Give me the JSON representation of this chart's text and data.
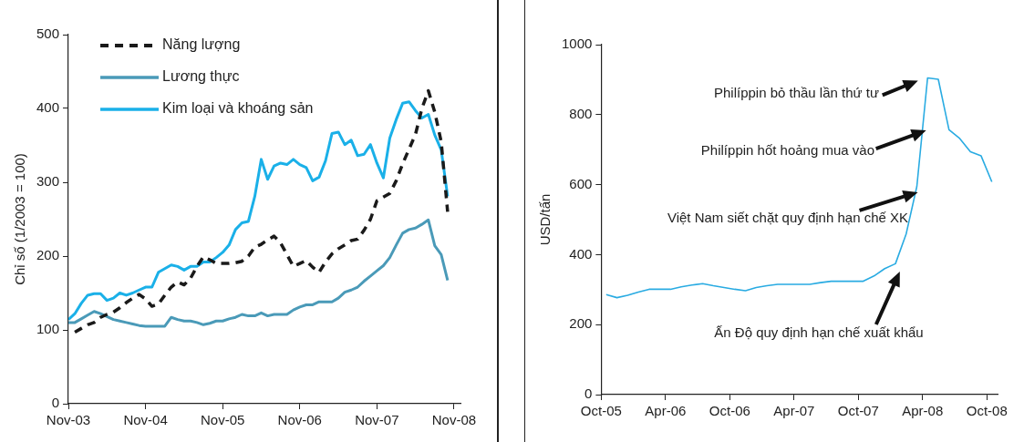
{
  "chart_data": [
    {
      "type": "line",
      "ylabel": "Chỉ số (1/2003 = 100)",
      "legend": "top left",
      "grid": false,
      "x": [
        "2003-11",
        "2003-12",
        "2004-01",
        "2004-02",
        "2004-03",
        "2004-04",
        "2004-05",
        "2004-06",
        "2004-07",
        "2004-08",
        "2004-09",
        "2004-10",
        "2004-11",
        "2004-12",
        "2005-01",
        "2005-02",
        "2005-03",
        "2005-04",
        "2005-05",
        "2005-06",
        "2005-07",
        "2005-08",
        "2005-09",
        "2005-10",
        "2005-11",
        "2005-12",
        "2006-01",
        "2006-02",
        "2006-03",
        "2006-04",
        "2006-05",
        "2006-06",
        "2006-07",
        "2006-08",
        "2006-09",
        "2006-10",
        "2006-11",
        "2006-12",
        "2007-01",
        "2007-02",
        "2007-03",
        "2007-04",
        "2007-05",
        "2007-06",
        "2007-07",
        "2007-08",
        "2007-09",
        "2007-10",
        "2007-11",
        "2007-12",
        "2008-01",
        "2008-02",
        "2008-03",
        "2008-04",
        "2008-05",
        "2008-06",
        "2008-07",
        "2008-08",
        "2008-09",
        "2008-10"
      ],
      "xlim": [
        "2003-11",
        "2008-12"
      ],
      "xticks": [
        {
          "value": "2003-11",
          "label": "Nov-03"
        },
        {
          "value": "2004-11",
          "label": "Nov-04"
        },
        {
          "value": "2005-11",
          "label": "Nov-05"
        },
        {
          "value": "2006-11",
          "label": "Nov-06"
        },
        {
          "value": "2007-11",
          "label": "Nov-07"
        },
        {
          "value": "2008-11",
          "label": "Nov-08"
        }
      ],
      "ylim": [
        0,
        500
      ],
      "yticks": [
        0,
        100,
        200,
        300,
        400,
        500
      ],
      "series": [
        {
          "name": "Năng lượng",
          "color": "#1a1a1a",
          "line_style": "dashed",
          "values": [
            null,
            97,
            102,
            107,
            110,
            117,
            121,
            124,
            130,
            137,
            143,
            148,
            142,
            132,
            135,
            147,
            158,
            165,
            161,
            170,
            186,
            199,
            195,
            190,
            190,
            190,
            191,
            193,
            200,
            212,
            216,
            222,
            227,
            218,
            202,
            186,
            190,
            194,
            185,
            178,
            192,
            203,
            210,
            215,
            221,
            223,
            235,
            250,
            275,
            280,
            285,
            302,
            325,
            345,
            365,
            400,
            424,
            395,
            355,
            260
          ]
        },
        {
          "name": "Lương thực",
          "color": "#4a9ab8",
          "values": [
            110,
            110,
            115,
            120,
            125,
            122,
            118,
            114,
            112,
            110,
            108,
            106,
            105,
            105,
            105,
            105,
            117,
            114,
            112,
            112,
            110,
            107,
            109,
            112,
            112,
            115,
            117,
            121,
            119,
            119,
            123,
            119,
            121,
            121,
            121,
            127,
            131,
            134,
            134,
            138,
            138,
            138,
            143,
            151,
            154,
            158,
            166,
            173,
            180,
            187,
            198,
            215,
            231,
            236,
            238,
            243,
            249,
            214,
            202,
            167
          ]
        },
        {
          "name": "Kim loại và khoáng sản",
          "color": "#1ab0e8",
          "values": [
            114,
            122,
            136,
            147,
            149,
            149,
            140,
            143,
            150,
            147,
            150,
            154,
            158,
            158,
            178,
            183,
            188,
            186,
            181,
            186,
            186,
            192,
            192,
            198,
            205,
            215,
            236,
            245,
            247,
            281,
            331,
            304,
            322,
            326,
            324,
            331,
            324,
            320,
            302,
            307,
            329,
            366,
            368,
            351,
            357,
            336,
            338,
            351,
            326,
            306,
            360,
            385,
            407,
            409,
            397,
            387,
            392,
            364,
            344,
            281
          ]
        }
      ]
    },
    {
      "type": "line",
      "ylabel": "USD/tấn",
      "grid": false,
      "x": [
        "2005-10-15",
        "2005-11-15",
        "2005-12-15",
        "2006-01-15",
        "2006-02-15",
        "2006-03-15",
        "2006-04-15",
        "2006-05-15",
        "2006-06-15",
        "2006-07-15",
        "2006-08-15",
        "2006-09-15",
        "2006-10-15",
        "2006-11-15",
        "2006-12-15",
        "2007-01-15",
        "2007-02-15",
        "2007-03-15",
        "2007-04-15",
        "2007-05-15",
        "2007-06-15",
        "2007-07-15",
        "2007-08-15",
        "2007-09-15",
        "2007-10-15",
        "2007-11-15",
        "2007-12-15",
        "2008-01-15",
        "2008-02-15",
        "2008-03-15",
        "2008-04-15",
        "2008-05-15",
        "2008-06-15",
        "2008-07-15",
        "2008-08-15",
        "2008-09-15",
        "2008-10-15"
      ],
      "xlim": [
        "2005-10",
        "2008-11"
      ],
      "xticks": [
        {
          "value": "2005-10",
          "label": "Oct-05"
        },
        {
          "value": "2006-04",
          "label": "Apr-06"
        },
        {
          "value": "2006-10",
          "label": "Oct-06"
        },
        {
          "value": "2007-04",
          "label": "Apr-07"
        },
        {
          "value": "2007-10",
          "label": "Oct-07"
        },
        {
          "value": "2008-04",
          "label": "Apr-08"
        },
        {
          "value": "2008-10",
          "label": "Oct-08"
        }
      ],
      "ylim": [
        0,
        1000
      ],
      "yticks": [
        0,
        200,
        400,
        600,
        800,
        1000
      ],
      "series": [
        {
          "color": "#29abe2",
          "values": [
            286,
            277,
            284,
            293,
            301,
            301,
            301,
            308,
            313,
            317,
            311,
            306,
            301,
            297,
            306,
            311,
            315,
            315,
            315,
            315,
            320,
            324,
            324,
            324,
            324,
            339,
            360,
            374,
            459,
            595,
            905,
            901,
            757,
            732,
            694,
            682,
            608
          ]
        }
      ],
      "annotations": [
        "Philíppin bỏ thầu lần thứ tư",
        "Philíppin hốt hoảng mua vào",
        "Việt Nam siết chặt quy định hạn chế XK",
        "Ấn Độ quy định hạn chế xuất khẩu"
      ]
    }
  ]
}
